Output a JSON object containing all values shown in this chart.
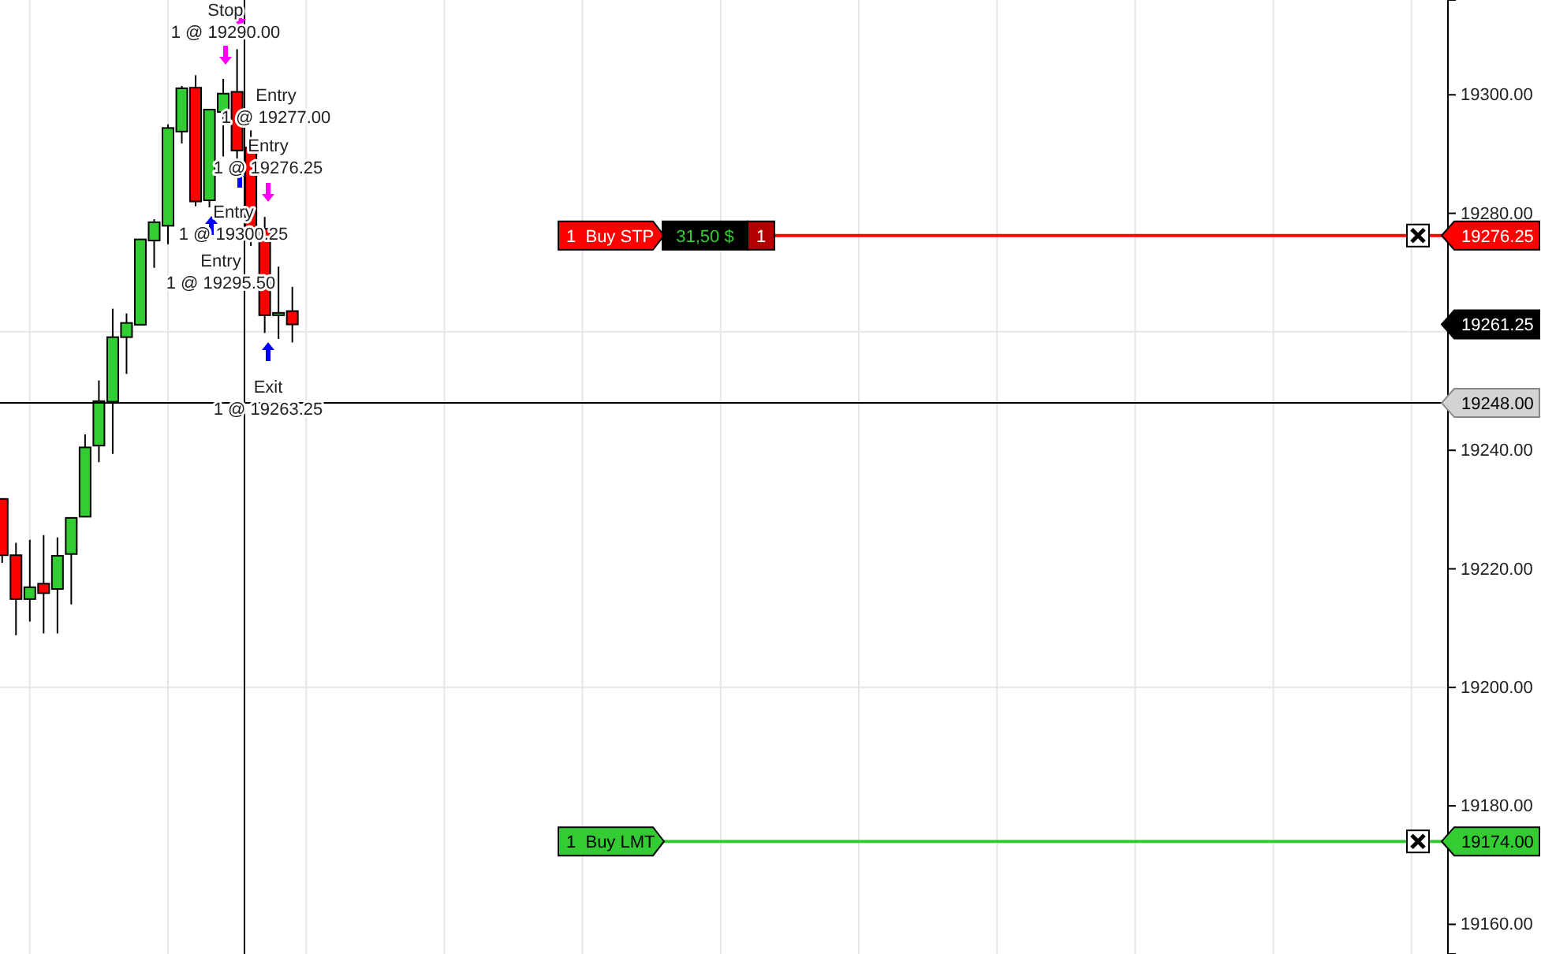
{
  "chart_data": {
    "type": "candlestick",
    "categories": [
      null,
      null,
      null,
      null,
      null,
      null,
      null,
      null,
      null,
      null,
      null,
      null,
      null,
      null,
      null,
      null,
      null,
      null,
      null,
      null,
      null,
      null,
      null,
      null,
      null,
      null,
      null,
      null,
      null,
      null,
      null,
      null,
      null,
      null,
      null,
      null,
      null,
      null,
      null,
      null,
      null,
      null,
      null,
      null,
      null,
      null,
      null,
      null,
      null,
      null,
      null,
      null,
      null,
      null,
      null,
      null,
      null,
      null,
      null,
      null,
      null,
      null,
      null,
      null,
      null,
      null,
      null,
      null,
      null,
      null,
      null,
      null,
      null,
      null,
      null,
      null,
      null,
      null,
      null,
      null,
      null,
      null,
      null,
      null,
      null,
      null,
      null,
      null,
      null,
      null,
      null,
      null,
      null,
      null,
      null,
      null,
      null,
      null,
      null,
      null,
      null,
      null,
      null,
      null,
      null
    ],
    "ohlc": [
      [
        19231.8,
        19231.8,
        19221.0,
        19222.3
      ],
      [
        19222.3,
        19224.4,
        19208.8,
        19214.9
      ],
      [
        19214.9,
        19224.9,
        19211.1,
        19216.9
      ],
      [
        19217.5,
        19225.7,
        19209.1,
        19215.9
      ],
      [
        19216.6,
        19225.3,
        19209.1,
        19222.2
      ],
      [
        19222.5,
        19228.6,
        19214.0,
        19228.6
      ],
      [
        19228.8,
        19242.7,
        19228.8,
        19240.5
      ],
      [
        19240.8,
        19251.8,
        19238.0,
        19248.3
      ],
      [
        19248.2,
        19263.9,
        19239.4,
        19259.1
      ],
      [
        19259.1,
        19263.1,
        19252.9,
        19261.5
      ],
      [
        19261.2,
        19275.6,
        19261.2,
        19275.6
      ],
      [
        19275.4,
        19279.0,
        19270.8,
        19278.5
      ],
      [
        19277.9,
        19295.0,
        19274.8,
        19294.4
      ],
      [
        19293.8,
        19301.5,
        19291.8,
        19301.1
      ],
      [
        19301.2,
        19303.3,
        19281.2,
        19282.0
      ],
      [
        19282.2,
        19297.5,
        19281.0,
        19297.5
      ],
      [
        19297.1,
        19302.7,
        19289.6,
        19300.2
      ],
      [
        19300.5,
        19307.7,
        19289.1,
        19290.6
      ],
      [
        19291.1,
        19294.0,
        19274.5,
        19277.6
      ],
      [
        19277.4,
        19279.4,
        19259.8,
        19262.8
      ],
      [
        19262.8,
        19271.0,
        19258.8,
        19263.2
      ],
      [
        19263.5,
        19267.6,
        19258.2,
        19261.25
      ],
      null,
      null,
      null,
      null,
      null,
      null,
      null,
      null,
      null,
      null,
      null,
      null,
      null,
      null,
      null,
      null,
      null,
      null,
      null,
      null,
      null,
      null,
      null,
      null,
      null,
      null,
      null,
      null,
      null,
      null,
      null,
      null,
      null,
      null,
      null,
      null,
      null,
      null,
      null,
      null,
      null,
      null,
      null,
      null,
      null,
      null,
      null,
      null,
      null,
      null,
      null,
      null,
      null,
      null,
      null,
      null,
      null,
      null,
      null,
      null,
      null,
      null,
      null,
      null,
      null,
      null,
      null,
      null,
      null,
      null,
      null,
      null,
      null,
      null,
      null,
      null,
      null,
      null,
      null,
      null,
      null,
      null,
      null
    ],
    "ylim": [
      19155,
      19316
    ],
    "yticks": [
      {
        "value": 19160,
        "label": "19160.00"
      },
      {
        "value": 19180,
        "label": "19180.00"
      },
      {
        "value": 19200,
        "label": "19200.00"
      },
      {
        "value": 19220,
        "label": "19220.00"
      },
      {
        "value": 19240,
        "label": "19240.00"
      },
      {
        "value": 19260,
        "label": null
      },
      {
        "value": 19280,
        "label": "19280.00"
      },
      {
        "value": 19300,
        "label": "19300.00"
      }
    ],
    "grid": true,
    "ref_lines": [
      {
        "axis": "y",
        "value": 19276.25,
        "label": "1  Buy STP",
        "color": "#ff0000"
      },
      {
        "axis": "y",
        "value": 19174.0,
        "label": "1  Buy LMT",
        "color": "#33cc33"
      },
      {
        "axis": "y",
        "value": 19248.0,
        "color": "#000000"
      }
    ],
    "annotations": [
      "Stop\n1 @ 19290.00",
      "Entry\n1 @ 19277.00",
      "Entry\n1 @ 19276.25",
      "Entry\n1 @ 19300.25",
      "Entry\n1 @ 19295.50",
      "Exit\n1 @ 19263.25",
      "31,50 $",
      "1",
      "19276.25",
      "19261.25",
      "19248.00",
      "19174.00"
    ]
  }
}
